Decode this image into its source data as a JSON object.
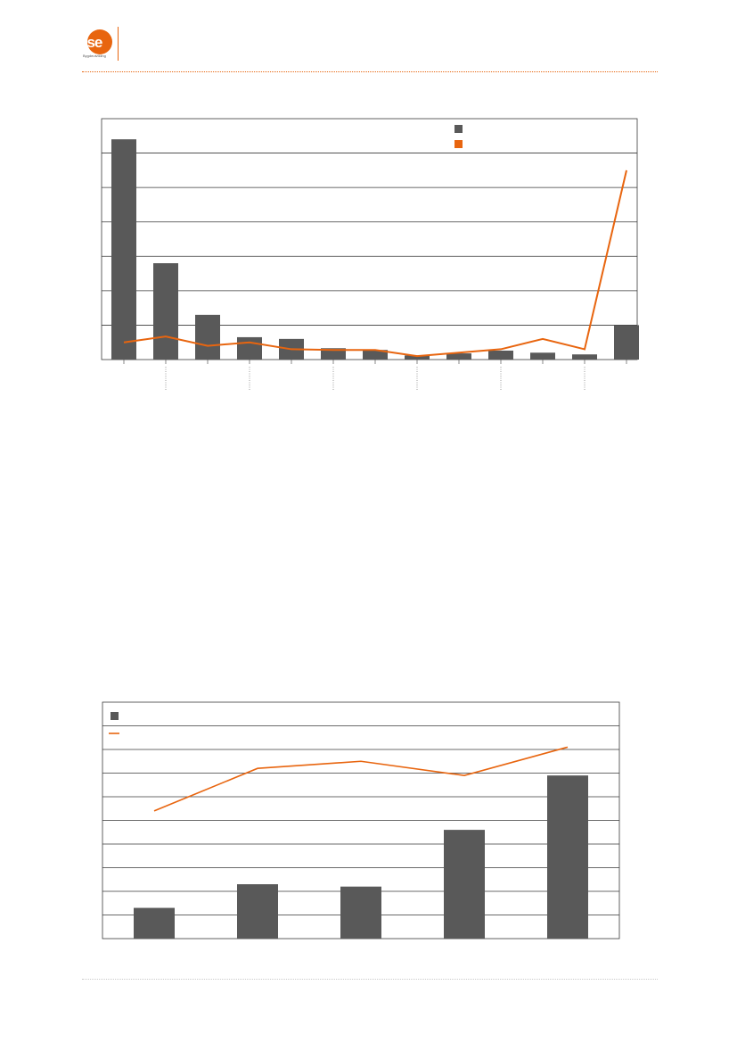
{
  "header": {
    "logo_text": "ase",
    "logo_subtext": "Bygdeutvikling"
  },
  "colors": {
    "accent": "#e8650f",
    "bar": "#595959",
    "grid": "#3a3a3a"
  },
  "chart_data": [
    {
      "type": "bar",
      "title": "",
      "legend_position": "top-right",
      "grid": true,
      "y_range": [
        0,
        7
      ],
      "series": [
        {
          "type": "bar",
          "values": [
            6.4,
            2.8,
            1.3,
            0.65,
            0.6,
            0.33,
            0.28,
            0.12,
            0.18,
            0.26,
            0.2,
            0.15,
            1.0
          ]
        },
        {
          "type": "line",
          "values": [
            0.5,
            0.67,
            0.4,
            0.5,
            0.3,
            0.28,
            0.28,
            0.1,
            0.2,
            0.3,
            0.6,
            0.3,
            5.5
          ]
        }
      ]
    },
    {
      "type": "bar",
      "title": "",
      "legend_position": "top-left",
      "grid": true,
      "y_range": [
        0,
        10
      ],
      "series": [
        {
          "type": "bar",
          "values": [
            1.3,
            2.3,
            2.2,
            4.6,
            6.9
          ]
        },
        {
          "type": "line",
          "values": [
            5.4,
            7.2,
            7.5,
            6.9,
            8.1
          ]
        }
      ]
    }
  ]
}
